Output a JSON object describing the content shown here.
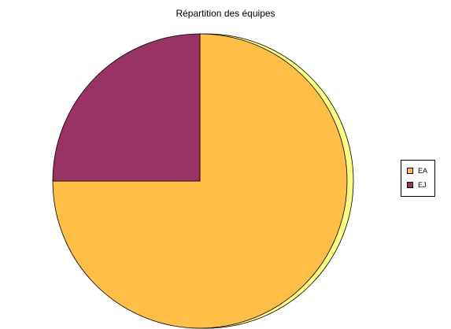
{
  "chart_data": {
    "type": "pie",
    "title": "Répartition des équipes",
    "categories": [
      "EA",
      "EJ"
    ],
    "values": [
      75,
      25
    ],
    "colors": [
      "#FFBE46",
      "#993366"
    ],
    "edge_colors": [
      "#FFFF80",
      "#CC6699"
    ],
    "legend_position": "right"
  }
}
